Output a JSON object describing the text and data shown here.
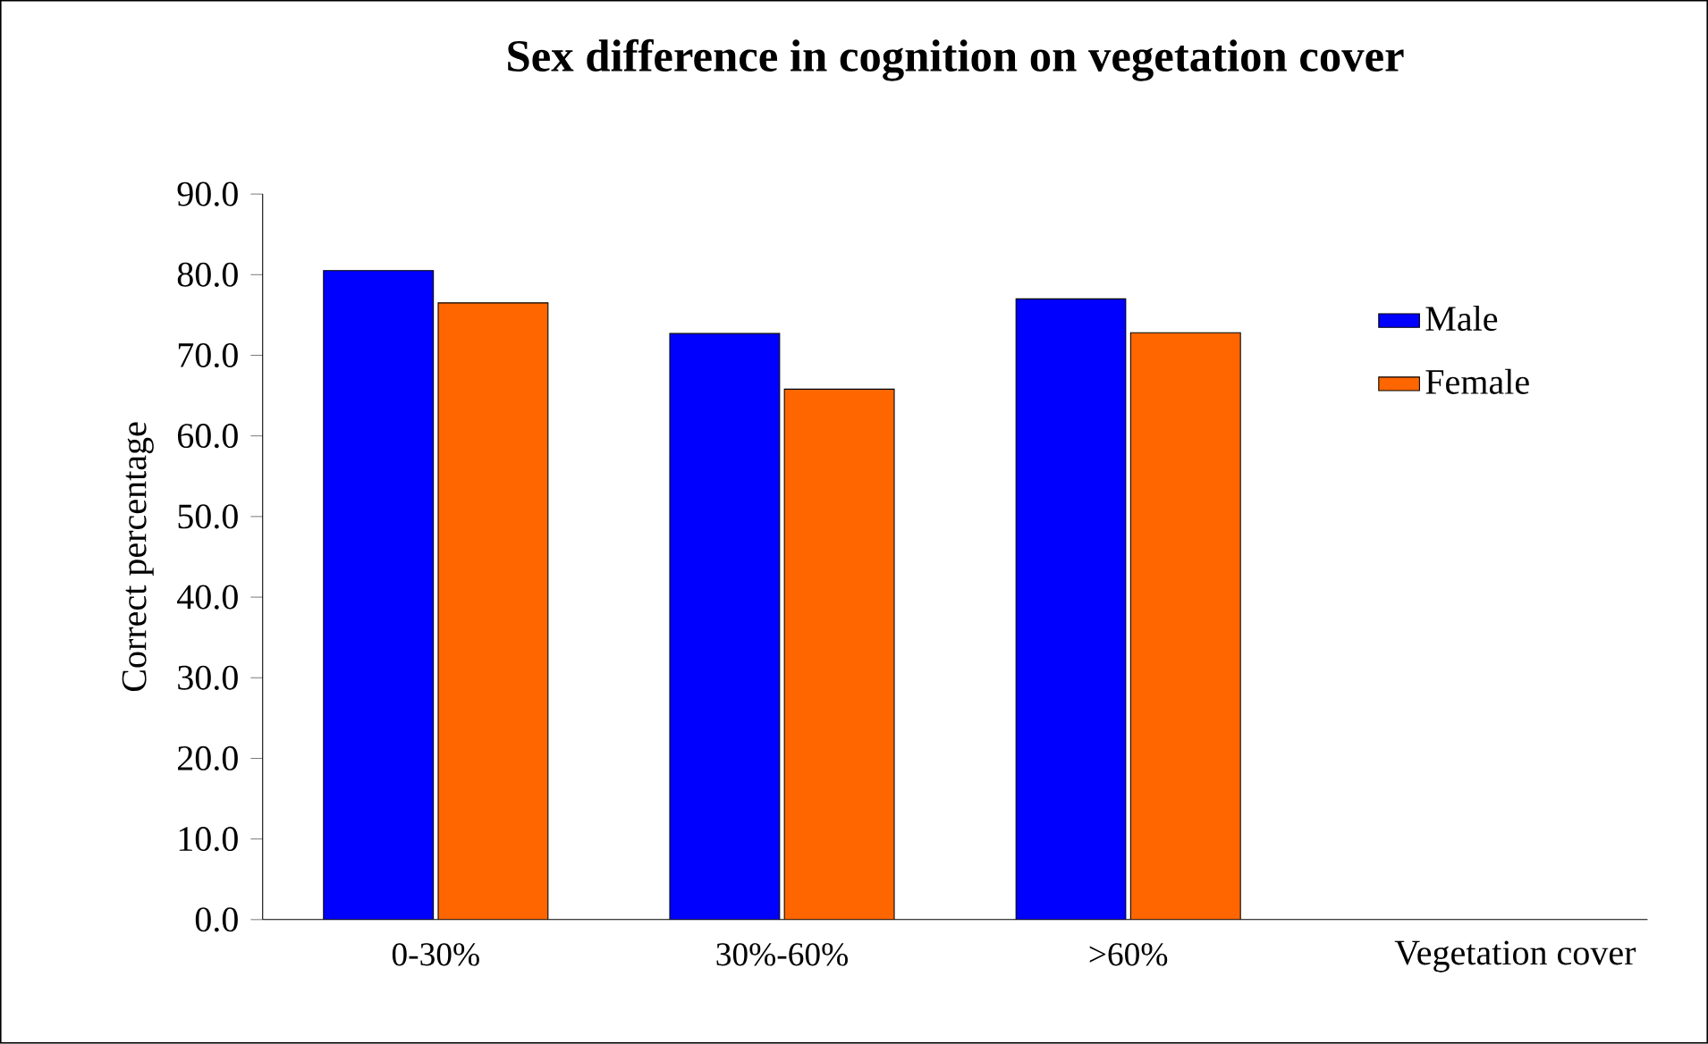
{
  "chart_data": {
    "type": "bar",
    "title": "Sex difference in cognition on vegetation cover",
    "xlabel": "Vegetation cover",
    "ylabel": "Correct percentage",
    "categories": [
      "0-30%",
      "30%-60%",
      ">60%"
    ],
    "series": [
      {
        "name": "Male",
        "color": "#0000ff",
        "values": [
          80.5,
          72.7,
          77.0
        ]
      },
      {
        "name": "Female",
        "color": "#ff6600",
        "values": [
          76.5,
          65.8,
          72.8
        ]
      }
    ],
    "ylim": [
      0,
      90
    ],
    "yticks": [
      {
        "value": 0,
        "label": "0.0"
      },
      {
        "value": 10,
        "label": "10.0"
      },
      {
        "value": 20,
        "label": "20.0"
      },
      {
        "value": 30,
        "label": "30.0"
      },
      {
        "value": 40,
        "label": "40.0"
      },
      {
        "value": 50,
        "label": "50.0"
      },
      {
        "value": 60,
        "label": "60.0"
      },
      {
        "value": 70,
        "label": "70.0"
      },
      {
        "value": 80,
        "label": "80.0"
      },
      {
        "value": 90,
        "label": "90.0"
      }
    ],
    "grid": false,
    "legend": "right"
  }
}
